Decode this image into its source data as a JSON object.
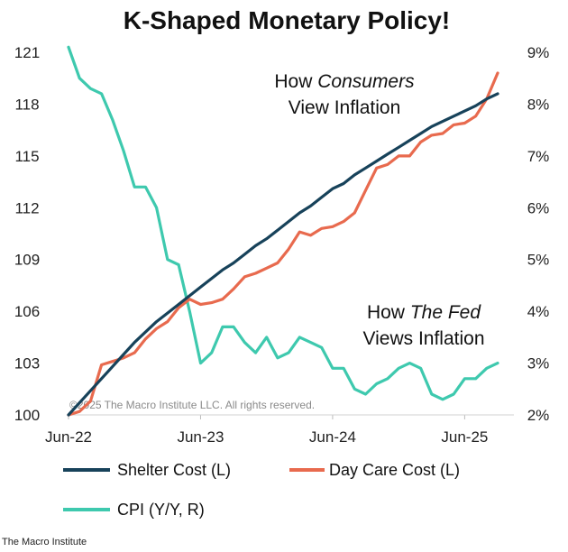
{
  "chart_data": {
    "type": "line",
    "title": "K-Shaped Monetary Policy!",
    "x_tick_labels": [
      "Jun-22",
      "Jun-23",
      "Jun-24",
      "Jun-25"
    ],
    "y_left_ticks": [
      "100",
      "103",
      "106",
      "109",
      "112",
      "115",
      "118",
      "121"
    ],
    "y_right_ticks": [
      "2%",
      "3%",
      "4%",
      "5%",
      "6%",
      "7%",
      "8%",
      "9%"
    ],
    "ylim_left": [
      100,
      121
    ],
    "ylim_right": [
      2,
      9
    ],
    "x_unit": "months since Jun-22",
    "grid": false,
    "legend_position": "bottom",
    "annotations": {
      "consumers_line1_a": "How ",
      "consumers_line1_b": "Consumers",
      "consumers_line2": "View Inflation",
      "fed_line1_a": "How ",
      "fed_line1_b": "The Fed",
      "fed_line2": "Views Inflation"
    },
    "copyright": "©2025 The Macro Institute LLC. All rights reserved.",
    "series": [
      {
        "name": "Shelter Cost (L)",
        "axis": "left",
        "color": "#17425a",
        "x": [
          0,
          1,
          2,
          3,
          4,
          5,
          6,
          7,
          8,
          9,
          10,
          11,
          12,
          13,
          14,
          15,
          16,
          17,
          18,
          19,
          20,
          21,
          22,
          23,
          24,
          25,
          26,
          27,
          28,
          29,
          30,
          31,
          32,
          33,
          34,
          35,
          36,
          37,
          38,
          39
        ],
        "values": [
          100.0,
          100.7,
          101.4,
          102.1,
          102.8,
          103.5,
          104.2,
          104.8,
          105.4,
          105.9,
          106.4,
          106.9,
          107.4,
          107.9,
          108.4,
          108.8,
          109.3,
          109.8,
          110.2,
          110.7,
          111.2,
          111.7,
          112.1,
          112.6,
          113.1,
          113.4,
          113.9,
          114.3,
          114.7,
          115.1,
          115.5,
          115.9,
          116.3,
          116.7,
          117.0,
          117.3,
          117.6,
          117.9,
          118.3,
          118.6
        ]
      },
      {
        "name": "Day Care Cost (L)",
        "axis": "left",
        "color": "#e86a4e",
        "x": [
          0,
          1,
          2,
          3,
          4,
          5,
          6,
          7,
          8,
          9,
          10,
          11,
          12,
          13,
          14,
          15,
          16,
          17,
          18,
          19,
          20,
          21,
          22,
          23,
          24,
          25,
          26,
          27,
          28,
          29,
          30,
          31,
          32,
          33,
          34,
          35,
          36,
          37,
          38,
          39
        ],
        "values": [
          100.0,
          100.2,
          100.8,
          102.9,
          103.1,
          103.3,
          103.6,
          104.4,
          105.0,
          105.4,
          106.2,
          106.7,
          106.4,
          106.5,
          106.7,
          107.3,
          108.0,
          108.2,
          108.5,
          108.8,
          109.6,
          110.6,
          110.4,
          110.8,
          110.9,
          111.2,
          111.7,
          113.0,
          114.3,
          114.5,
          115.0,
          115.0,
          115.8,
          116.2,
          116.3,
          116.8,
          116.9,
          117.3,
          118.3,
          119.8
        ]
      },
      {
        "name": "CPI (Y/Y, R)",
        "axis": "right",
        "color": "#3ec9ae",
        "x": [
          0,
          1,
          2,
          3,
          4,
          5,
          6,
          7,
          8,
          9,
          10,
          11,
          12,
          13,
          14,
          15,
          16,
          17,
          18,
          19,
          20,
          21,
          22,
          23,
          24,
          25,
          26,
          27,
          28,
          29,
          30,
          31,
          32,
          33,
          34,
          35,
          36,
          37,
          38,
          39
        ],
        "values": [
          9.1,
          8.5,
          8.3,
          8.2,
          7.7,
          7.1,
          6.4,
          6.4,
          6.0,
          5.0,
          4.9,
          4.0,
          3.0,
          3.2,
          3.7,
          3.7,
          3.4,
          3.2,
          3.5,
          3.1,
          3.2,
          3.5,
          3.4,
          3.3,
          2.9,
          2.9,
          2.5,
          2.4,
          2.6,
          2.7,
          2.9,
          3.0,
          2.9,
          2.4,
          2.3,
          2.4,
          2.7,
          2.7,
          2.9,
          3.0
        ]
      }
    ]
  },
  "source_label": "The Macro Institute"
}
